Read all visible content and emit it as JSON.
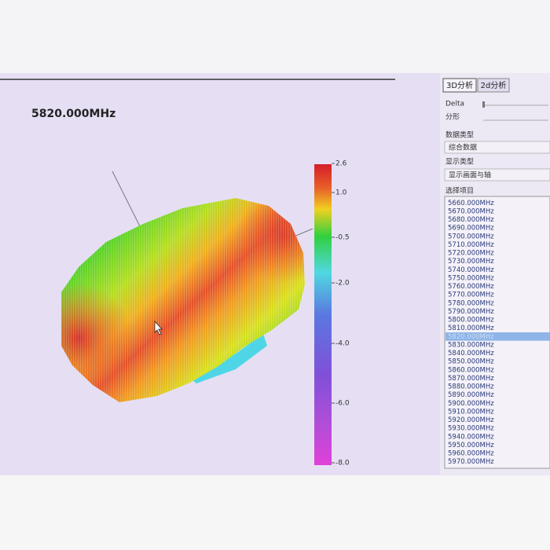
{
  "view": {
    "frequency_label": "5820.000MHz",
    "colorbar": {
      "ticks": [
        "2.6",
        "1.0",
        "-0.5",
        "-2.0",
        "-4.0",
        "-6.0",
        "-8.0"
      ]
    }
  },
  "panel": {
    "tabs": [
      "3D分析",
      "2d分析"
    ],
    "delta_label": "Delta",
    "fractal_label": "分形",
    "data_type_label": "数据类型",
    "data_type_value": "综合数据",
    "display_type_label": "显示类型",
    "display_type_value": "显示画面与轴",
    "select_label": "选择项目",
    "items": [
      "5660.000MHz",
      "5670.000MHz",
      "5680.000MHz",
      "5690.000MHz",
      "5700.000MHz",
      "5710.000MHz",
      "5720.000MHz",
      "5730.000MHz",
      "5740.000MHz",
      "5750.000MHz",
      "5760.000MHz",
      "5770.000MHz",
      "5780.000MHz",
      "5790.000MHz",
      "5800.000MHz",
      "5810.000MHz",
      "5820.000MHz",
      "5830.000MHz",
      "5840.000MHz",
      "5850.000MHz",
      "5860.000MHz",
      "5870.000MHz",
      "5880.000MHz",
      "5890.000MHz",
      "5900.000MHz",
      "5910.000MHz",
      "5920.000MHz",
      "5930.000MHz",
      "5940.000MHz",
      "5950.000MHz",
      "5960.000MHz",
      "5970.000MHz"
    ],
    "selected": 16
  }
}
